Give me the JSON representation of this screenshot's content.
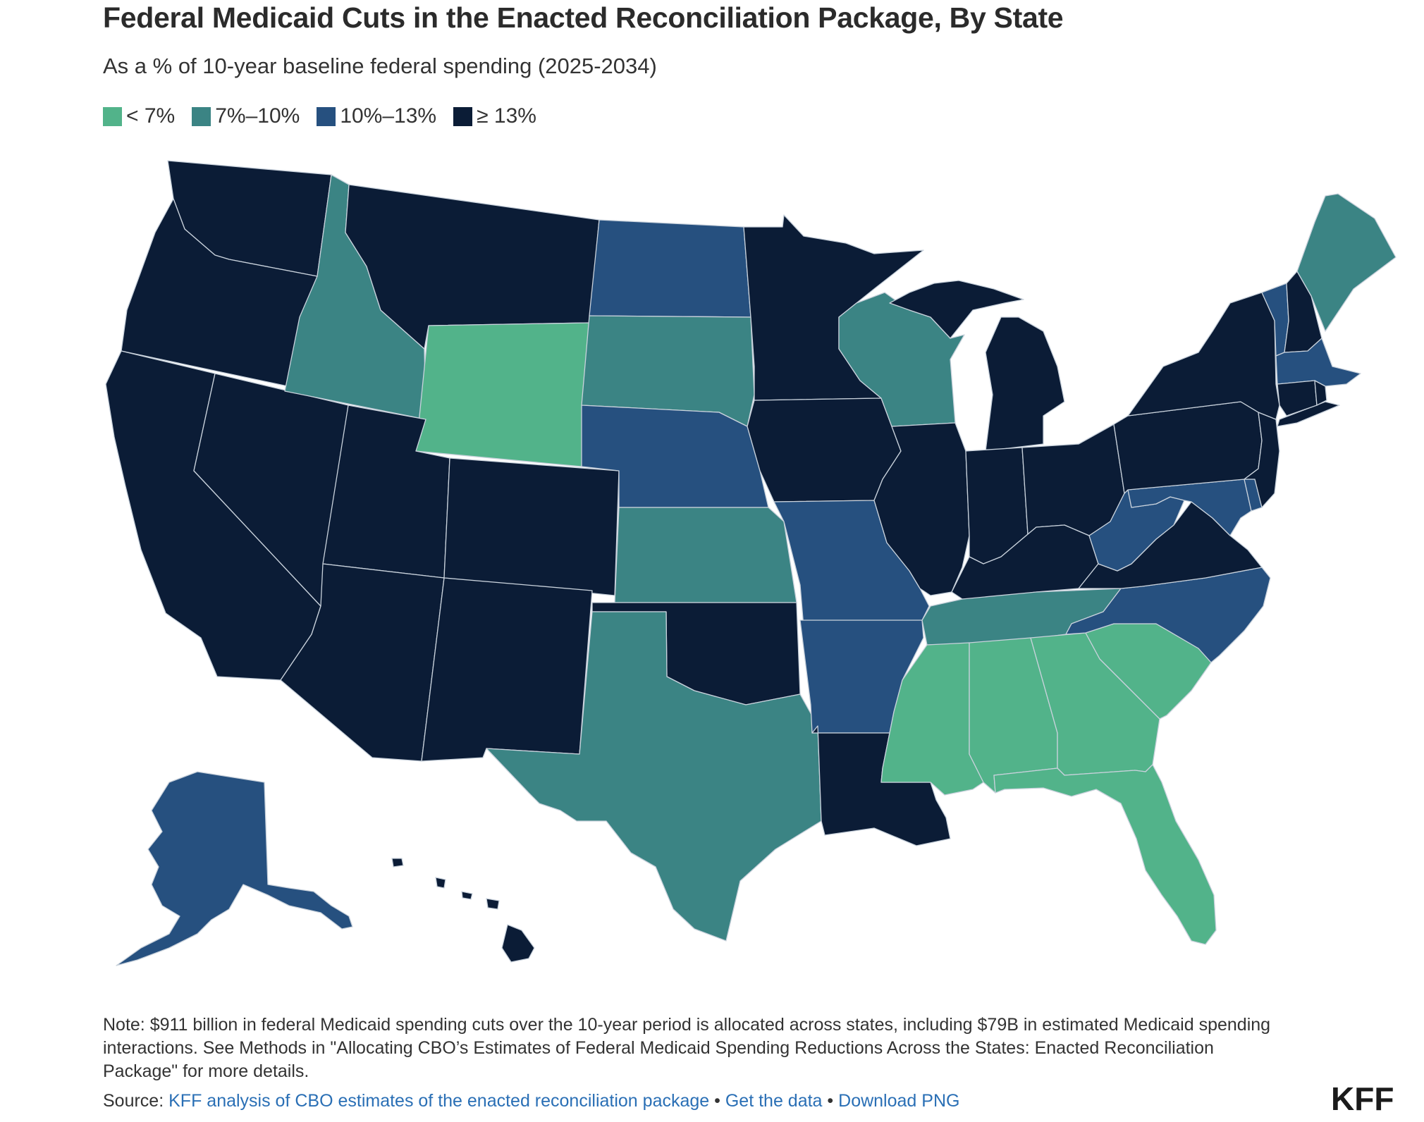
{
  "title": "Federal Medicaid Cuts in the Enacted Reconciliation Package, By State",
  "subtitle": "As a % of 10-year baseline federal spending (2025-2034)",
  "legend": [
    {
      "label": "< 7%",
      "color": "#52b38a"
    },
    {
      "label": "7%–10%",
      "color": "#3b8484"
    },
    {
      "label": "10%–13%",
      "color": "#26507f"
    },
    {
      "label": "≥ 13%",
      "color": "#0b1c36"
    }
  ],
  "map_data": {
    "categories": {
      "lt7": "< 7%",
      "7to10": "7%–10%",
      "10to13": "10%–13%",
      "ge13": "≥ 13%"
    },
    "states": {
      "WA": "ge13",
      "OR": "ge13",
      "CA": "ge13",
      "NV": "ge13",
      "ID": "7to10",
      "MT": "ge13",
      "WY": "lt7",
      "UT": "ge13",
      "AZ": "ge13",
      "CO": "ge13",
      "NM": "ge13",
      "ND": "10to13",
      "SD": "7to10",
      "NE": "10to13",
      "KS": "7to10",
      "OK": "ge13",
      "TX": "7to10",
      "MN": "ge13",
      "IA": "ge13",
      "MO": "10to13",
      "AR": "10to13",
      "LA": "ge13",
      "WI": "7to10",
      "IL": "ge13",
      "MI": "ge13",
      "IN": "ge13",
      "OH": "ge13",
      "KY": "ge13",
      "TN": "7to10",
      "MS": "lt7",
      "AL": "lt7",
      "GA": "lt7",
      "FL": "lt7",
      "SC": "lt7",
      "NC": "10to13",
      "VA": "ge13",
      "WV": "10to13",
      "MD": "10to13",
      "DE": "10to13",
      "PA": "ge13",
      "NJ": "ge13",
      "NY": "ge13",
      "CT": "ge13",
      "RI": "ge13",
      "MA": "10to13",
      "VT": "10to13",
      "NH": "ge13",
      "ME": "7to10",
      "AK": "10to13",
      "HI": "ge13"
    }
  },
  "note": "Note: $911 billion in federal Medicaid spending cuts over the 10-year period is allocated across states, including $79B in estimated Medicaid spending interactions. See Methods in \"Allocating CBO’s Estimates of Federal Medicaid Spending Reductions Across the States: Enacted Reconciliation Package\" for more details.",
  "source": {
    "prefix": "Source:",
    "link_text": "KFF analysis of CBO estimates of the enacted reconciliation package",
    "sep1": "•",
    "get_data": "Get the data",
    "sep2": "•",
    "download": "Download PNG"
  },
  "logo": "KFF"
}
